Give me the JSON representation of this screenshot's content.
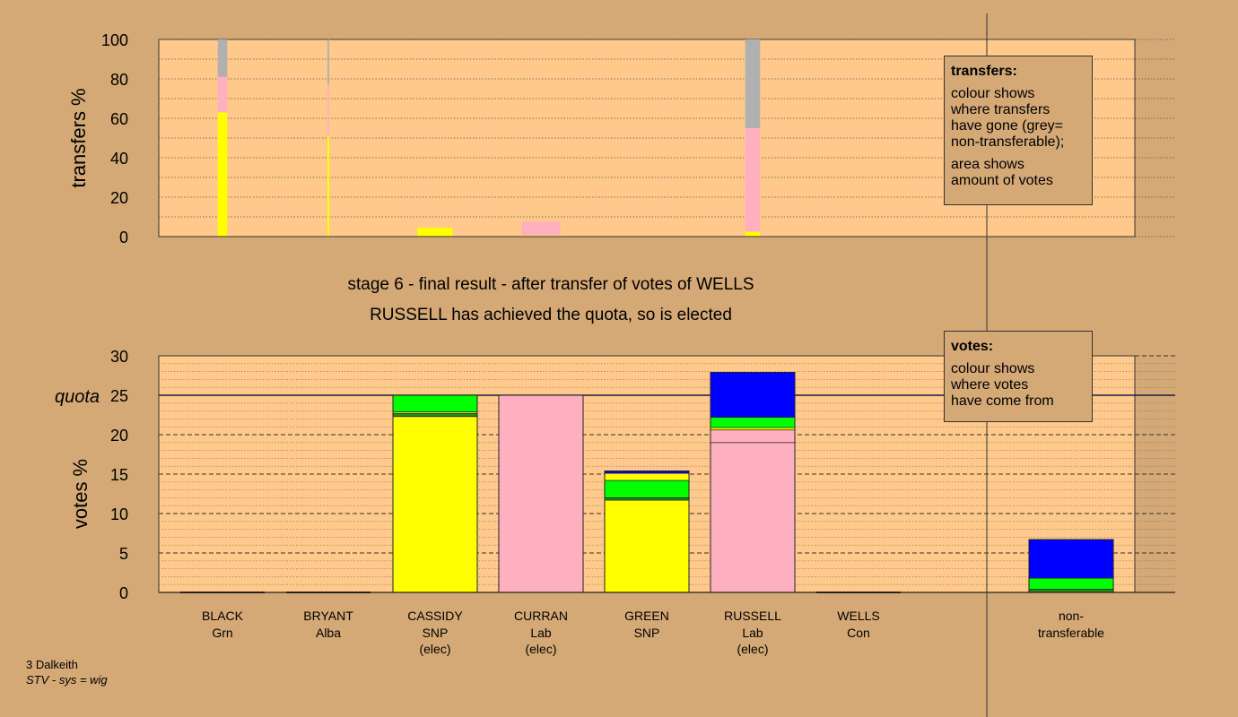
{
  "colors": {
    "background": "#d4a976",
    "plot_bg": "#fec98a",
    "SNP": "#ffff00",
    "Lab": "#ffb0c0",
    "Grn": "#00ff00",
    "Alba": "#228b22",
    "Con": "#0000ff",
    "non-transferable": "#b0b0b0"
  },
  "chart_data": [
    {
      "type": "bar",
      "stacked": true,
      "ylabel": "transfers %",
      "ylim": [
        0,
        100
      ],
      "yticks": [
        0,
        20,
        40,
        60,
        80,
        100
      ],
      "grid": true,
      "bars": [
        {
          "candidate": "BLACK",
          "width_share": 2.3,
          "segments": [
            {
              "party": "SNP",
              "value": 63
            },
            {
              "party": "Lab",
              "value": 18
            },
            {
              "party": "non-transferable",
              "value": 19
            }
          ]
        },
        {
          "candidate": "BRYANT",
          "width_share": 0.4,
          "segments": [
            {
              "party": "SNP",
              "value": 51
            },
            {
              "party": "Lab",
              "value": 26
            },
            {
              "party": "non-transferable",
              "value": 23
            }
          ]
        },
        {
          "candidate": "CASSIDY",
          "width_share": 8.5,
          "segments": [
            {
              "party": "SNP",
              "value": 4.5
            }
          ]
        },
        {
          "candidate": "CURRAN",
          "width_share": 9.3,
          "segments": [
            {
              "party": "SNP",
              "value": 0.5
            },
            {
              "party": "Lab",
              "value": 7
            }
          ]
        },
        {
          "candidate": "GREEN",
          "width_share": 0,
          "segments": []
        },
        {
          "candidate": "RUSSELL",
          "width_share": 3.6,
          "segments": [
            {
              "party": "SNP",
              "value": 2.5
            },
            {
              "party": "Lab",
              "value": 52.5
            },
            {
              "party": "non-transferable",
              "value": 45
            }
          ]
        },
        {
          "candidate": "WELLS",
          "width_share": 0,
          "segments": []
        }
      ]
    },
    {
      "type": "bar",
      "stacked": true,
      "ylabel": "votes %",
      "ylim": [
        0,
        30
      ],
      "yticks": [
        0,
        5,
        10,
        15,
        20,
        25,
        30
      ],
      "quota": 25,
      "quota_label": "quota",
      "grid": true,
      "bars": [
        {
          "candidate": "BLACK",
          "party": "Grn",
          "note": "",
          "segments": []
        },
        {
          "candidate": "BRYANT",
          "party": "Alba",
          "note": "",
          "segments": []
        },
        {
          "candidate": "CASSIDY",
          "party": "SNP",
          "note": "(elec)",
          "segments": [
            {
              "party": "SNP",
              "value": 22.3
            },
            {
              "party": "Alba",
              "value": 0.4
            },
            {
              "party": "SNP",
              "value": 0.2
            },
            {
              "party": "Grn",
              "value": 2.1
            }
          ]
        },
        {
          "candidate": "CURRAN",
          "party": "Lab",
          "note": "(elec)",
          "segments": [
            {
              "party": "Lab",
              "value": 25
            }
          ]
        },
        {
          "candidate": "GREEN",
          "party": "SNP",
          "note": "",
          "segments": [
            {
              "party": "SNP",
              "value": 11.7
            },
            {
              "party": "Alba",
              "value": 0.3
            },
            {
              "party": "Grn",
              "value": 2.2
            },
            {
              "party": "SNP",
              "value": 0.9
            },
            {
              "party": "Con",
              "value": 0.3
            }
          ]
        },
        {
          "candidate": "RUSSELL",
          "party": "Lab",
          "note": "(elec)",
          "segments": [
            {
              "party": "Lab",
              "value": 19
            },
            {
              "party": "Lab",
              "value": 1.6
            },
            {
              "party": "SNP",
              "value": 0.3
            },
            {
              "party": "Grn",
              "value": 1.3
            },
            {
              "party": "Con",
              "value": 5.7
            }
          ]
        },
        {
          "candidate": "WELLS",
          "party": "Con",
          "note": "",
          "segments": []
        },
        {
          "candidate": "non-transferable",
          "label_lines": [
            "non-",
            "transferable"
          ],
          "segments": [
            {
              "party": "Alba",
              "value": 0.4
            },
            {
              "party": "Grn",
              "value": 1.4
            },
            {
              "party": "Con",
              "value": 4.9
            }
          ]
        }
      ]
    }
  ],
  "stage_line1": "stage 6 - final result - after transfer of votes of WELLS",
  "stage_line2": "RUSSELL has achieved the quota, so is elected",
  "transfers_legend": {
    "title": "transfers:",
    "lines1": [
      "colour shows",
      "where transfers",
      "have gone (grey=",
      "non-transferable);"
    ],
    "lines2": [
      "area shows",
      "amount of votes"
    ]
  },
  "votes_legend": {
    "title": "votes:",
    "lines": [
      "colour shows",
      "where votes",
      "have come from"
    ]
  },
  "footer": {
    "line1": "3 Dalkeith",
    "line2": "STV - sys = wig"
  }
}
